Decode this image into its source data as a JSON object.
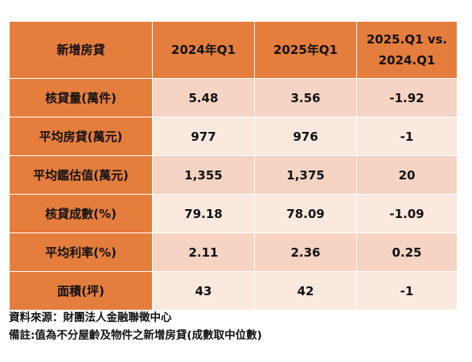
{
  "table": {
    "header": {
      "col0": "新增房貸",
      "col1": "2024年Q1",
      "col2": "2025年Q1",
      "col3_line1": "2025.Q1 vs.",
      "col3_line2": "2024.Q1"
    },
    "rows": [
      {
        "label": "核貸量(萬件)",
        "v2024": "5.48",
        "v2025": "3.56",
        "diff": "-1.92"
      },
      {
        "label": "平均房貸(萬元)",
        "v2024": "977",
        "v2025": "976",
        "diff": "-1"
      },
      {
        "label": "平均鑑估值(萬元)",
        "v2024": "1,355",
        "v2025": "1,375",
        "diff": "20"
      },
      {
        "label": "核貸成數(%)",
        "v2024": "79.18",
        "v2025": "78.09",
        "diff": "-1.09"
      },
      {
        "label": "平均利率(%)",
        "v2024": "2.11",
        "v2025": "2.36",
        "diff": "0.25"
      },
      {
        "label": "面積(坪)",
        "v2024": "43",
        "v2025": "42",
        "diff": "-1"
      }
    ],
    "colors": {
      "header_orange": "#e57d3d",
      "row_dark": "#f6d3c2",
      "row_light": "#fbe9e0"
    }
  },
  "notes": {
    "source": "資料來源：財團法人金融聯徵中心",
    "remark": "備註:值為不分屋齡及物件之新增房貸(成數取中位數)"
  }
}
